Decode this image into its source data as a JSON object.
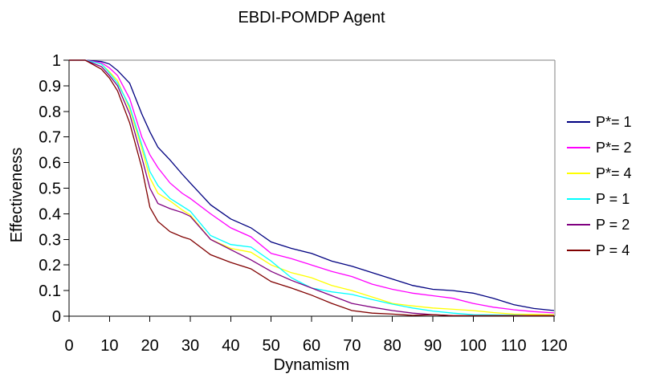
{
  "chart_data": {
    "type": "line",
    "title": "EBDI-POMDP Agent",
    "xlabel": "Dynamism",
    "ylabel": "Effectiveness",
    "xlim": [
      0,
      120
    ],
    "ylim": [
      0,
      1
    ],
    "x_ticks": [
      0,
      10,
      20,
      30,
      40,
      50,
      60,
      70,
      80,
      90,
      100,
      110,
      120
    ],
    "y_ticks": [
      "0",
      "0.1",
      "0.2",
      "0.3",
      "0.4",
      "0.5",
      "0.6",
      "0.7",
      "0.8",
      "0.9",
      "1"
    ],
    "grid": false,
    "legend_position": "right",
    "plot_border_color": "#808080",
    "axis_color": "#000000",
    "x": [
      0,
      4,
      8,
      10,
      12,
      15,
      18,
      20,
      22,
      25,
      28,
      30,
      35,
      40,
      45,
      50,
      55,
      60,
      65,
      70,
      75,
      80,
      85,
      90,
      95,
      100,
      105,
      110,
      115,
      120
    ],
    "series": [
      {
        "name": "P*= 1",
        "color": "#000080",
        "values": [
          1,
          1,
          0.995,
          0.985,
          0.96,
          0.91,
          0.79,
          0.72,
          0.66,
          0.61,
          0.555,
          0.52,
          0.435,
          0.38,
          0.345,
          0.29,
          0.265,
          0.245,
          0.215,
          0.195,
          0.17,
          0.145,
          0.12,
          0.105,
          0.1,
          0.09,
          0.07,
          0.045,
          0.03,
          0.022
        ]
      },
      {
        "name": "P*= 2",
        "color": "#FF00FF",
        "values": [
          1,
          1,
          0.99,
          0.97,
          0.94,
          0.85,
          0.7,
          0.63,
          0.58,
          0.52,
          0.48,
          0.46,
          0.4,
          0.345,
          0.31,
          0.245,
          0.225,
          0.2,
          0.175,
          0.155,
          0.125,
          0.105,
          0.09,
          0.08,
          0.07,
          0.05,
          0.035,
          0.025,
          0.018,
          0.013
        ]
      },
      {
        "name": "P*= 4",
        "color": "#FFFF00",
        "values": [
          1,
          1,
          0.985,
          0.955,
          0.92,
          0.81,
          0.655,
          0.54,
          0.48,
          0.45,
          0.415,
          0.395,
          0.3,
          0.265,
          0.25,
          0.2,
          0.17,
          0.15,
          0.12,
          0.1,
          0.075,
          0.05,
          0.04,
          0.032,
          0.027,
          0.022,
          0.014,
          0.008,
          0.007,
          0.006
        ]
      },
      {
        "name": "P = 1",
        "color": "#00FFFF",
        "values": [
          1,
          1,
          0.985,
          0.95,
          0.91,
          0.82,
          0.67,
          0.565,
          0.51,
          0.46,
          0.43,
          0.41,
          0.315,
          0.28,
          0.27,
          0.215,
          0.15,
          0.11,
          0.095,
          0.085,
          0.065,
          0.047,
          0.032,
          0.02,
          0.012,
          0.006,
          0.005,
          0.004,
          0.002,
          0.002
        ]
      },
      {
        "name": "P = 2",
        "color": "#800080",
        "values": [
          1,
          1,
          0.975,
          0.94,
          0.9,
          0.79,
          0.62,
          0.5,
          0.44,
          0.42,
          0.405,
          0.39,
          0.3,
          0.26,
          0.22,
          0.175,
          0.14,
          0.11,
          0.08,
          0.05,
          0.035,
          0.022,
          0.012,
          0.006,
          0.002,
          0.002,
          0.002,
          0.002,
          0.002,
          0.002
        ]
      },
      {
        "name": "P = 4",
        "color": "#800000",
        "values": [
          1,
          1,
          0.965,
          0.93,
          0.88,
          0.755,
          0.58,
          0.425,
          0.37,
          0.33,
          0.31,
          0.3,
          0.24,
          0.21,
          0.185,
          0.135,
          0.11,
          0.082,
          0.05,
          0.022,
          0.012,
          0.008,
          0.003,
          0.006,
          0.002,
          0.002,
          0.002,
          0.002,
          0.002,
          0.002
        ]
      }
    ]
  }
}
